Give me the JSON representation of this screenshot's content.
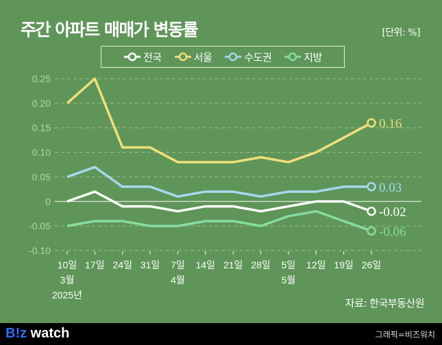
{
  "title": "주간 아파트 매매가 변동률",
  "unit": "[단위: %]",
  "source": "자료: 한국부동산원",
  "footer": {
    "logo_b": "B!z",
    "logo_rest": " watch",
    "credit": "그래픽=비즈워치"
  },
  "colors": {
    "background": "#5f9559",
    "national": "#ffffff",
    "seoul": "#f2df7a",
    "capital": "#a8d8ee",
    "region": "#86dca0"
  },
  "chart_data": {
    "type": "line",
    "title": "주간 아파트 매매가 변동률",
    "ylabel": "[단위: %]",
    "ylim": [
      -0.1,
      0.25
    ],
    "yticks": [
      0.25,
      0.2,
      0.15,
      0.1,
      0.05,
      0,
      -0.05,
      -0.1
    ],
    "ytick_labels": [
      "0.25",
      "0.20",
      "0.15",
      "0.10",
      "0.05",
      "0",
      "-0.05",
      "-0.10"
    ],
    "grid": true,
    "legend": "top",
    "categories": [
      "10일",
      "17일",
      "24일",
      "31일",
      "7일",
      "14일",
      "21일",
      "28일",
      "5일",
      "12일",
      "19일",
      "26일"
    ],
    "month_labels": [
      {
        "index": 0,
        "label": "3월"
      },
      {
        "index": 4,
        "label": "4월"
      },
      {
        "index": 8,
        "label": "5월"
      }
    ],
    "year_label": {
      "index": 0,
      "label": "2025년"
    },
    "series": [
      {
        "name": "전국",
        "color": "#ffffff",
        "values": [
          0,
          0.02,
          -0.01,
          -0.01,
          -0.02,
          -0.01,
          -0.01,
          -0.02,
          -0.01,
          0,
          0,
          -0.02
        ],
        "end_label": "-0.02"
      },
      {
        "name": "서울",
        "color": "#f2df7a",
        "values": [
          0.2,
          0.25,
          0.11,
          0.11,
          0.08,
          0.08,
          0.08,
          0.09,
          0.08,
          0.1,
          0.13,
          0.16
        ],
        "end_label": "0.16"
      },
      {
        "name": "수도권",
        "color": "#a8d8ee",
        "values": [
          0.05,
          0.07,
          0.03,
          0.03,
          0.01,
          0.02,
          0.02,
          0.01,
          0.02,
          0.02,
          0.03,
          0.03
        ],
        "end_label": "0.03"
      },
      {
        "name": "지방",
        "color": "#86dca0",
        "values": [
          -0.05,
          -0.04,
          -0.04,
          -0.05,
          -0.05,
          -0.04,
          -0.04,
          -0.05,
          -0.03,
          -0.02,
          -0.04,
          -0.06
        ],
        "end_label": "-0.06"
      }
    ]
  }
}
